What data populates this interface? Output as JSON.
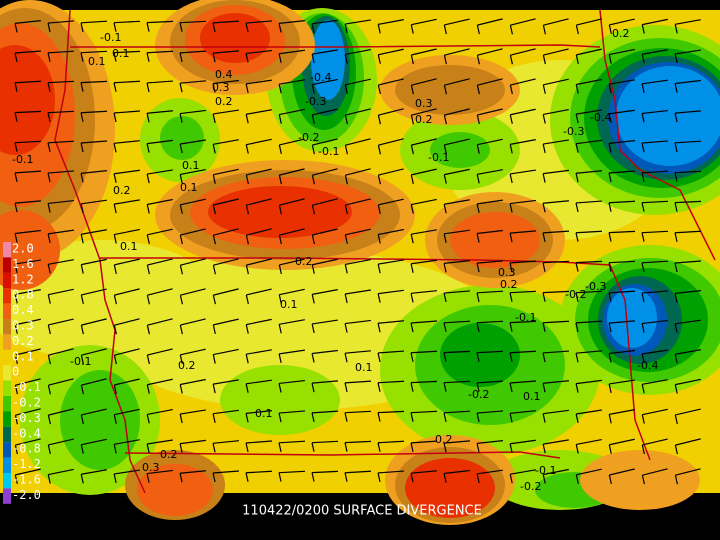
{
  "footer": {
    "title": "110422/0200 SURFACE DIVERGENCE"
  },
  "legend": [
    {
      "label": "2.0",
      "color": "#f088a8"
    },
    {
      "label": "1.6",
      "color": "#b80000"
    },
    {
      "label": "1.2",
      "color": "#d81000"
    },
    {
      "label": "0.8",
      "color": "#e83000"
    },
    {
      "label": "0.4",
      "color": "#f06010"
    },
    {
      "label": "0.3",
      "color": "#c88018"
    },
    {
      "label": "0.2",
      "color": "#f0a020"
    },
    {
      "label": "0.1",
      "color": "#f0d000"
    },
    {
      "label": "0",
      "color": "#e8e830"
    },
    {
      "label": "-0.1",
      "color": "#98e000"
    },
    {
      "label": "-0.2",
      "color": "#40c800"
    },
    {
      "label": "-0.3",
      "color": "#00a000"
    },
    {
      "label": "-0.4",
      "color": "#006850"
    },
    {
      "label": "-0.8",
      "color": "#0058b8"
    },
    {
      "label": "-1.2",
      "color": "#0090e8"
    },
    {
      "label": "-1.6",
      "color": "#00c8f0"
    },
    {
      "label": "-2.0",
      "color": "#9040d0"
    }
  ],
  "contour_labels": [
    "-0.1",
    "0.1",
    "0.1",
    "0.4",
    "0.3",
    "0.2",
    "-0.4",
    "-0.3",
    "-0.2",
    "-0.1",
    "0.3",
    "0.2",
    "-0.3",
    "-0.4",
    "0.2",
    "-0.1",
    "0.1",
    "0.1",
    "-0.1",
    "0.2",
    "0.1",
    "0.2",
    "0.3",
    "0.2",
    "0.1",
    "-0.3",
    "-0.2",
    "-0.4",
    "-0.1",
    "0.2",
    "0.1",
    "-0.2",
    "0.1",
    "-0.1",
    "0.2",
    "0.2",
    "0.3",
    "-0.1",
    "-0.2",
    "0.1"
  ]
}
